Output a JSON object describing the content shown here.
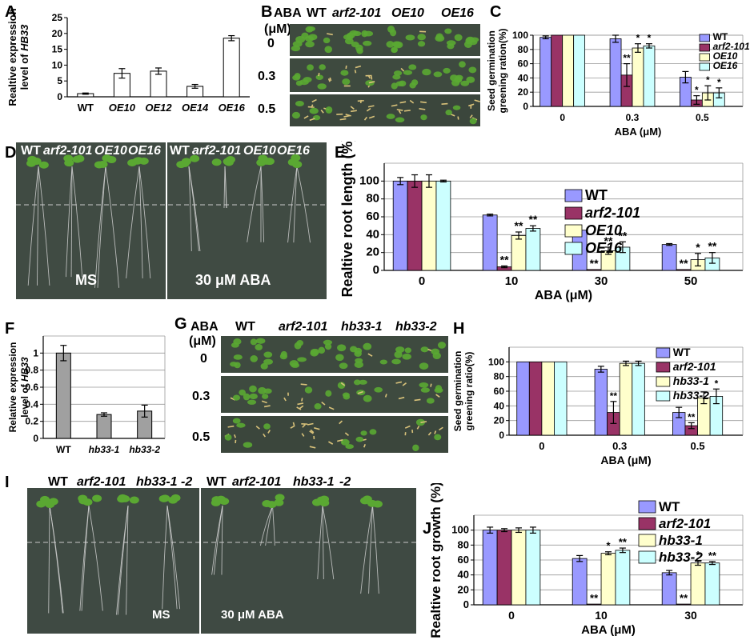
{
  "letters": {
    "A": "A",
    "B": "B",
    "C": "C",
    "D": "D",
    "E": "E",
    "F": "F",
    "G": "G",
    "H": "H",
    "I": "I",
    "J": "J"
  },
  "colors": {
    "wt": "#9999ff",
    "arf": "#993366",
    "oe10": "#ffffcc",
    "oe16": "#ccffff",
    "gray": "#a0a0a0",
    "plate": "#3d4a3e",
    "seedling": "#5aa832"
  },
  "panelB": {
    "header_unit_1": "ABA",
    "header_unit_2": "(μM)",
    "genotypes": [
      "WT",
      "arf2-101",
      "OE10",
      "OE16"
    ],
    "rows": [
      "0",
      "0.3",
      "0.5"
    ]
  },
  "panelG": {
    "header_unit_1": "ABA",
    "header_unit_2": "(μM)",
    "genotypes": [
      "WT",
      "arf2-101",
      "hb33-1",
      "hb33-2"
    ],
    "rows": [
      "0",
      "0.3",
      "0.5"
    ]
  },
  "panelD": {
    "left_genotypes": [
      "WT",
      "arf2-101",
      "OE10",
      "OE16"
    ],
    "right_genotypes": [
      "WT",
      "arf2-101",
      "OE10",
      "OE16"
    ],
    "left_cond": "MS",
    "right_cond": "30 μM ABA"
  },
  "panelI": {
    "left_genotypes": [
      "WT",
      "arf2-101",
      "hb33-1",
      "-2"
    ],
    "right_genotypes": [
      "WT",
      "arf2-101",
      "hb33-1",
      "-2"
    ],
    "left_cond": "MS",
    "right_cond": "30 μM ABA"
  },
  "chart_data": [
    {
      "id": "A",
      "type": "bar",
      "categories": [
        "WT",
        "OE10",
        "OE12",
        "OE14",
        "OE16"
      ],
      "values": [
        1,
        7.4,
        8.1,
        3.3,
        18.5
      ],
      "errors": [
        0.2,
        1.5,
        1.0,
        0.6,
        0.8
      ],
      "ylabel_1": "Realtive expression",
      "ylabel_2": "level of",
      "ylabel_gene": "HB33",
      "ylim": [
        0,
        25
      ],
      "yticks": [
        "0",
        "5",
        "10",
        "15",
        "20",
        "25"
      ]
    },
    {
      "id": "C",
      "type": "bar",
      "categories": [
        "0",
        "0.3",
        "0.5"
      ],
      "series": [
        {
          "name": "WT",
          "values": [
            97,
            95,
            41
          ],
          "errors": [
            2,
            5,
            8
          ]
        },
        {
          "name": "arf2-101",
          "values": [
            100,
            44,
            9
          ],
          "errors": [
            0,
            16,
            6
          ]
        },
        {
          "name": "OE10",
          "values": [
            100,
            82,
            19
          ],
          "errors": [
            0,
            6,
            10
          ]
        },
        {
          "name": "OE16",
          "values": [
            100,
            85,
            19
          ],
          "errors": [
            0,
            3,
            7
          ]
        }
      ],
      "stars": [
        {
          "cat": 1,
          "ser": 1,
          "text": "**"
        },
        {
          "cat": 1,
          "ser": 2,
          "text": "*"
        },
        {
          "cat": 1,
          "ser": 3,
          "text": "*"
        },
        {
          "cat": 2,
          "ser": 1,
          "text": "*"
        },
        {
          "cat": 2,
          "ser": 2,
          "text": "*"
        },
        {
          "cat": 2,
          "ser": 3,
          "text": "*"
        }
      ],
      "ylabel_1": "Seed germination",
      "ylabel_2": "greening ration(%)",
      "xlabel": "ABA (μM)",
      "ylim": [
        0,
        100
      ],
      "yticks": [
        "0",
        "20",
        "40",
        "60",
        "80",
        "100"
      ],
      "grid": true,
      "legend": "top-right"
    },
    {
      "id": "E",
      "type": "bar",
      "categories": [
        "0",
        "10",
        "30",
        "50"
      ],
      "series": [
        {
          "name": "WT",
          "values": [
            100,
            62,
            45,
            29
          ],
          "errors": [
            4,
            1,
            0,
            1
          ]
        },
        {
          "name": "arf2-101",
          "values": [
            100,
            4,
            1,
            1
          ],
          "errors": [
            7,
            1,
            0,
            0
          ]
        },
        {
          "name": "OE10",
          "values": [
            100,
            39,
            22,
            12
          ],
          "errors": [
            7,
            4,
            4,
            7
          ]
        },
        {
          "name": "OE16",
          "values": [
            100,
            47,
            26,
            14
          ],
          "errors": [
            1,
            3,
            6,
            6
          ]
        }
      ],
      "stars": [
        {
          "cat": 1,
          "ser": 1,
          "text": "**"
        },
        {
          "cat": 1,
          "ser": 2,
          "text": "**"
        },
        {
          "cat": 1,
          "ser": 3,
          "text": "**"
        },
        {
          "cat": 2,
          "ser": 1,
          "text": "**"
        },
        {
          "cat": 2,
          "ser": 2,
          "text": "**"
        },
        {
          "cat": 2,
          "ser": 3,
          "text": "**"
        },
        {
          "cat": 3,
          "ser": 1,
          "text": "**"
        },
        {
          "cat": 3,
          "ser": 2,
          "text": "*"
        },
        {
          "cat": 3,
          "ser": 3,
          "text": "**"
        }
      ],
      "ylabel": "Realtive root length (%)",
      "xlabel": "ABA (μM)",
      "ylim": [
        0,
        120
      ],
      "yticks": [
        "0",
        "20",
        "40",
        "60",
        "80",
        "100"
      ],
      "grid": true,
      "legend": "top-right"
    },
    {
      "id": "F",
      "type": "bar",
      "categories": [
        "WT",
        "hb33-1",
        "hb33-2"
      ],
      "values": [
        1.0,
        0.28,
        0.32
      ],
      "errors": [
        0.09,
        0.02,
        0.07
      ],
      "ylabel_1": "Relative expression",
      "ylabel_2": "level of",
      "ylabel_gene": "HB33",
      "ylim": [
        0,
        1.2
      ],
      "yticks": [
        "0",
        "0.2",
        "0.4",
        "0.6",
        "0.8",
        "1"
      ],
      "grid": true
    },
    {
      "id": "H",
      "type": "bar",
      "categories": [
        "0",
        "0.3",
        "0.5"
      ],
      "series": [
        {
          "name": "WT",
          "values": [
            100,
            90,
            31
          ],
          "errors": [
            0,
            4,
            7
          ]
        },
        {
          "name": "arf2-101",
          "values": [
            100,
            31,
            13
          ],
          "errors": [
            0,
            15,
            4
          ]
        },
        {
          "name": "hb33-1",
          "values": [
            100,
            98,
            51
          ],
          "errors": [
            0,
            3,
            8
          ]
        },
        {
          "name": "hb33-2",
          "values": [
            100,
            98,
            53
          ],
          "errors": [
            0,
            3,
            10
          ]
        }
      ],
      "stars": [
        {
          "cat": 1,
          "ser": 1,
          "text": "**"
        },
        {
          "cat": 2,
          "ser": 1,
          "text": "**"
        },
        {
          "cat": 2,
          "ser": 3,
          "text": "*"
        }
      ],
      "ylabel_1": "Seed germination",
      "ylabel_2": "greening ratio(%)",
      "xlabel": "ABA (μM)",
      "ylim": [
        0,
        120
      ],
      "yticks": [
        "0",
        "20",
        "40",
        "60",
        "80",
        "100"
      ],
      "grid": true,
      "legend": "top-right"
    },
    {
      "id": "J",
      "type": "bar",
      "categories": [
        "0",
        "10",
        "30"
      ],
      "series": [
        {
          "name": "WT",
          "values": [
            100,
            62,
            43
          ],
          "errors": [
            4,
            4,
            3
          ]
        },
        {
          "name": "arf2-101",
          "values": [
            100,
            1,
            1
          ],
          "errors": [
            2,
            0,
            0
          ]
        },
        {
          "name": "hb33-1",
          "values": [
            100,
            69,
            56
          ],
          "errors": [
            3,
            2,
            3
          ]
        },
        {
          "name": "hb33-2",
          "values": [
            100,
            73,
            56
          ],
          "errors": [
            4,
            3,
            2
          ]
        }
      ],
      "stars": [
        {
          "cat": 1,
          "ser": 1,
          "text": "**"
        },
        {
          "cat": 1,
          "ser": 2,
          "text": "*"
        },
        {
          "cat": 1,
          "ser": 3,
          "text": "**"
        },
        {
          "cat": 2,
          "ser": 1,
          "text": "**"
        },
        {
          "cat": 2,
          "ser": 2,
          "text": "*"
        },
        {
          "cat": 2,
          "ser": 3,
          "text": "**"
        }
      ],
      "ylabel": "Realtive root growth (%)",
      "xlabel": "ABA (μM)",
      "ylim": [
        0,
        120
      ],
      "yticks": [
        "0",
        "20",
        "40",
        "60",
        "80",
        "100"
      ],
      "grid": true,
      "legend": "top-right"
    }
  ]
}
